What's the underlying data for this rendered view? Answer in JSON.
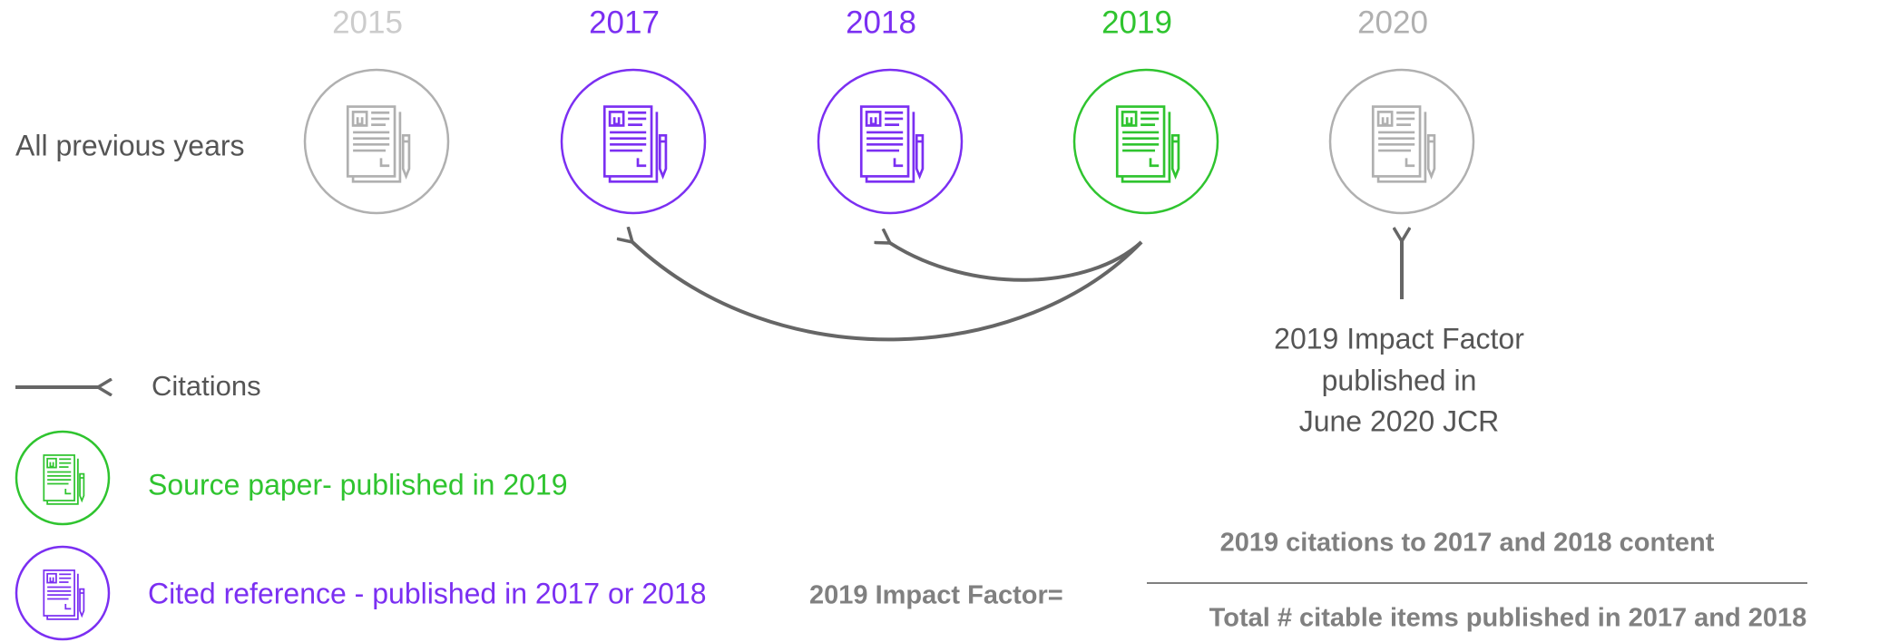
{
  "timeline": {
    "row_label": "All previous years",
    "years": [
      {
        "label": "2015",
        "color": "#cccccc",
        "ring": "#b0b0b0"
      },
      {
        "label": "2017",
        "color": "#7b2ff2",
        "ring": "#7b2ff2"
      },
      {
        "label": "2018",
        "color": "#7b2ff2",
        "ring": "#7b2ff2"
      },
      {
        "label": "2019",
        "color": "#2fc42f",
        "ring": "#2fc42f"
      },
      {
        "label": "2020",
        "color": "#b0b0b0",
        "ring": "#b0b0b0"
      }
    ]
  },
  "note": {
    "lines": [
      "2019 Impact Factor",
      "published in",
      "June 2020 JCR"
    ]
  },
  "legend": {
    "citations": "Citations",
    "source": {
      "label": "Source paper- published in 2019",
      "color": "#2fc42f"
    },
    "cited": {
      "label": "Cited reference - published in 2017 or 2018",
      "color": "#7b2ff2"
    }
  },
  "formula": {
    "label": "2019 Impact Factor=",
    "numerator": "2019 citations to 2017 and 2018 content",
    "denominator": "Total # citable items published in 2017 and 2018"
  }
}
